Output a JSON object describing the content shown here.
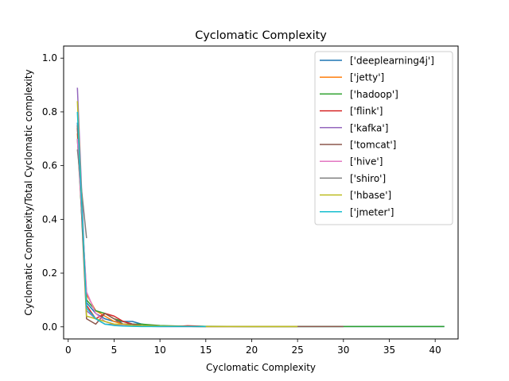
{
  "chart_data": {
    "type": "line",
    "title": "Cyclomatic Complexity",
    "xlabel": "Cyclomatic Complexity",
    "ylabel": "Cyclomatic Complexity/Total Cyclomatic complexity",
    "xlim": [
      -0.5,
      42.5
    ],
    "ylim": [
      -0.045,
      1.045
    ],
    "xticks": [
      0,
      5,
      10,
      15,
      20,
      25,
      30,
      35,
      40
    ],
    "yticks": [
      0.0,
      0.2,
      0.4,
      0.6,
      0.8,
      1.0
    ],
    "grid": false,
    "legend_position": "top-right",
    "series": [
      {
        "name": "['deeplearning4j']",
        "color": "#1f77b4",
        "x": [
          1,
          2,
          3,
          4,
          5,
          6,
          7,
          8,
          9,
          10,
          12,
          15,
          20,
          25,
          30,
          35,
          41
        ],
        "y": [
          0.76,
          0.09,
          0.05,
          0.03,
          0.02,
          0.02,
          0.02,
          0.01,
          0.005,
          0.003,
          0.002,
          0.001,
          0.001,
          0.001,
          0.001,
          0.001,
          0.001
        ]
      },
      {
        "name": "['jetty']",
        "color": "#ff7f0e",
        "x": [
          1,
          2,
          3,
          4,
          5,
          6,
          7,
          8,
          10,
          12,
          15,
          20,
          25
        ],
        "y": [
          0.72,
          0.12,
          0.06,
          0.04,
          0.02,
          0.01,
          0.01,
          0.005,
          0.003,
          0.002,
          0.001,
          0.001,
          0.001
        ]
      },
      {
        "name": "['hadoop']",
        "color": "#2ca02c",
        "x": [
          1,
          2,
          3,
          4,
          5,
          6,
          7,
          8,
          10,
          12,
          15,
          20,
          25,
          30,
          35,
          41
        ],
        "y": [
          0.7,
          0.1,
          0.06,
          0.05,
          0.03,
          0.02,
          0.01,
          0.01,
          0.005,
          0.003,
          0.002,
          0.001,
          0.001,
          0.001,
          0.001,
          0.001
        ]
      },
      {
        "name": "['flink']",
        "color": "#d62728",
        "x": [
          1,
          2,
          3,
          4,
          5,
          6,
          7,
          8,
          10,
          12,
          13,
          14,
          15
        ],
        "y": [
          0.74,
          0.08,
          0.03,
          0.05,
          0.04,
          0.02,
          0.01,
          0.005,
          0.003,
          0.002,
          0.004,
          0.003,
          0.001
        ]
      },
      {
        "name": "['kafka']",
        "color": "#9467bd",
        "x": [
          1,
          2,
          3,
          4,
          5,
          6,
          7,
          8,
          10,
          12,
          13,
          14,
          15
        ],
        "y": [
          0.89,
          0.06,
          0.03,
          0.01,
          0.008,
          0.005,
          0.003,
          0.002,
          0.001,
          0.001,
          0.001,
          0.001,
          0.001
        ]
      },
      {
        "name": "['tomcat']",
        "color": "#8c564b",
        "x": [
          1,
          2,
          3,
          4,
          5,
          6,
          7,
          8,
          10,
          12,
          15,
          20,
          25,
          30
        ],
        "y": [
          0.75,
          0.03,
          0.01,
          0.05,
          0.03,
          0.01,
          0.01,
          0.005,
          0.003,
          0.002,
          0.001,
          0.001,
          0.001,
          0.001
        ]
      },
      {
        "name": "['hive']",
        "color": "#e377c2",
        "x": [
          1,
          2,
          3,
          4,
          5,
          6,
          7,
          8,
          10,
          12,
          15
        ],
        "y": [
          0.7,
          0.13,
          0.05,
          0.02,
          0.01,
          0.005,
          0.003,
          0.002,
          0.001,
          0.001,
          0.001
        ]
      },
      {
        "name": "['shiro']",
        "color": "#7f7f7f",
        "x": [
          1,
          2
        ],
        "y": [
          0.66,
          0.33
        ]
      },
      {
        "name": "['hbase']",
        "color": "#bcbd22",
        "x": [
          1,
          2,
          3,
          4,
          5,
          6,
          7,
          8,
          10,
          12,
          15,
          20,
          25
        ],
        "y": [
          0.84,
          0.04,
          0.03,
          0.02,
          0.01,
          0.01,
          0.005,
          0.005,
          0.003,
          0.002,
          0.001,
          0.001,
          0.001
        ]
      },
      {
        "name": "['jmeter']",
        "color": "#17becf",
        "x": [
          1,
          2,
          3,
          4,
          5,
          6,
          7,
          8,
          10,
          12,
          15
        ],
        "y": [
          0.8,
          0.07,
          0.03,
          0.01,
          0.005,
          0.003,
          0.002,
          0.001,
          0.001,
          0.001,
          0.001
        ]
      }
    ]
  }
}
